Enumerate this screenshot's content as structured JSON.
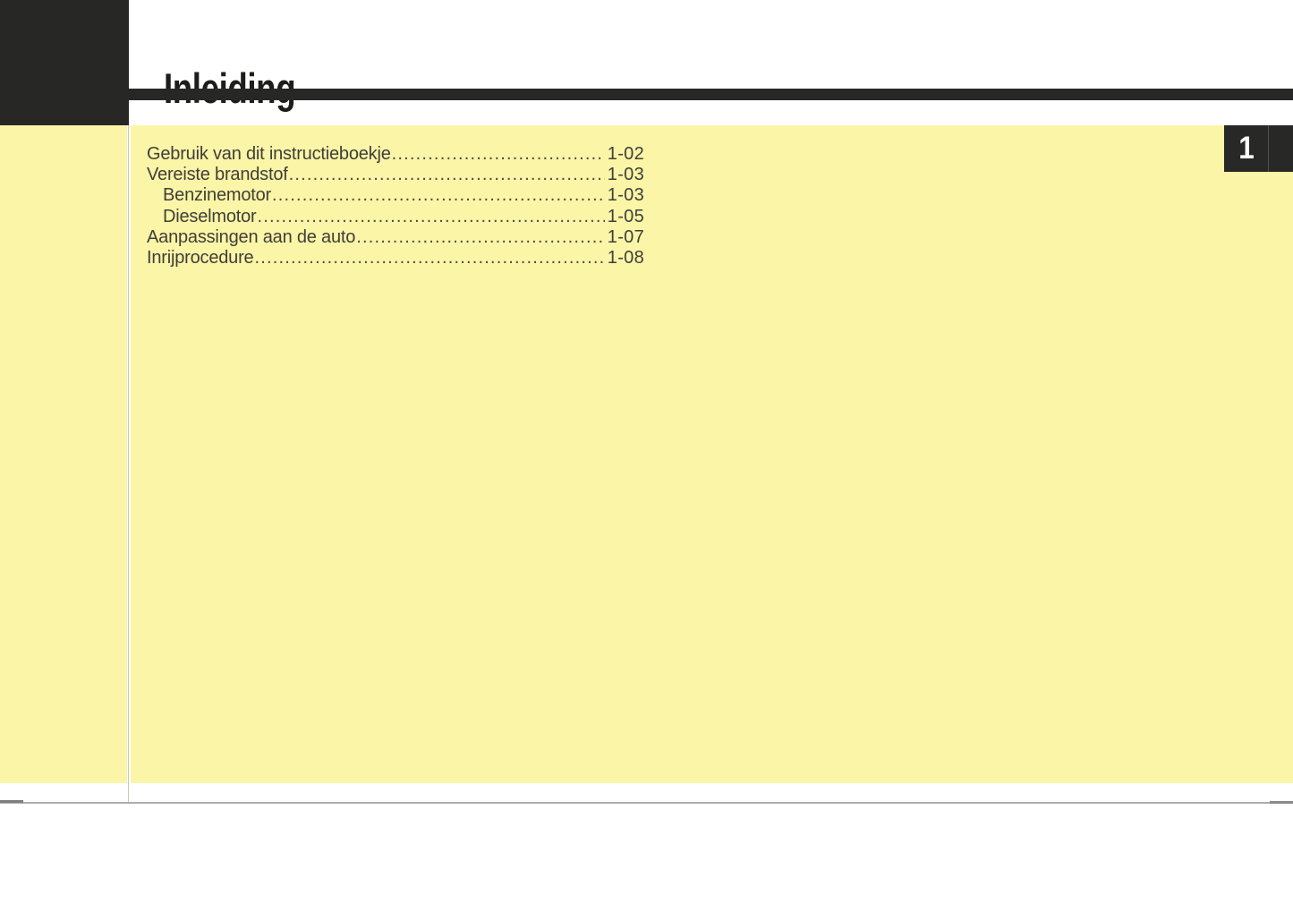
{
  "page": {
    "title": "Inleiding",
    "chapter_tab": "1"
  },
  "toc": {
    "entries": [
      {
        "label": "Gebruik van dit instructieboekje",
        "page": "1-02",
        "indent": false
      },
      {
        "label": "Vereiste brandstof",
        "page": "1-03",
        "indent": false
      },
      {
        "label": "Benzinemotor",
        "page": "1-03",
        "indent": true
      },
      {
        "label": "Dieselmotor",
        "page": "1-05",
        "indent": true
      },
      {
        "label": "Aanpassingen aan de auto",
        "page": "1-07",
        "indent": false
      },
      {
        "label": "Inrijprocedure",
        "page": "1-08",
        "indent": false
      }
    ]
  },
  "colors": {
    "page_yellow": "#fbf5a7",
    "ink_black": "#272725",
    "title_color": "#1d1d1b",
    "toc_text": "#3f3e39",
    "tab_text": "#ffffff"
  }
}
